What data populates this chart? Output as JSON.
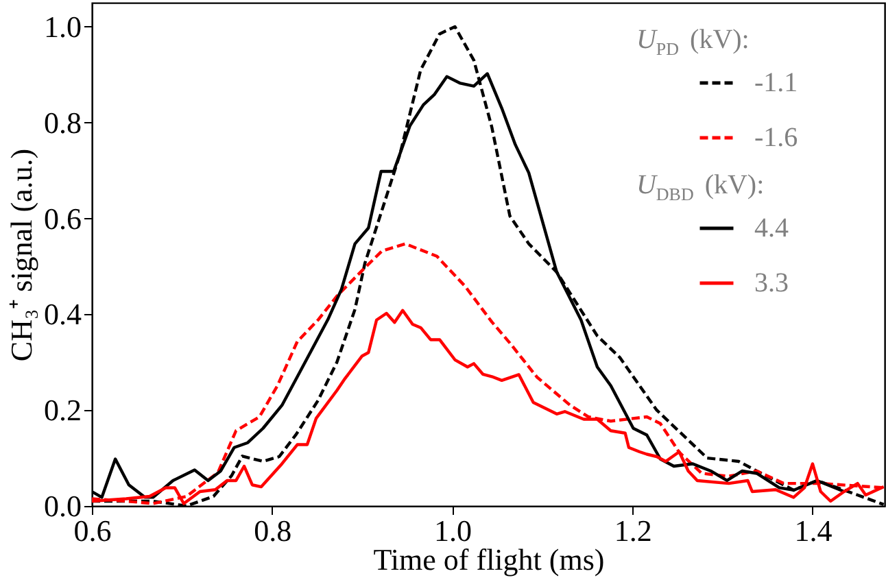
{
  "chart_data": {
    "type": "line",
    "xlabel": "Time of flight (ms)",
    "ylabel": "CH₃⁺ signal (a.u.)",
    "legend_title": "U$_{PD}$ (kV):",
    "annotations": [
      "U$_{DBD}$ (kV):"
    ],
    "xlim": [
      0.6,
      1.48
    ],
    "ylim": [
      0.0,
      1.05
    ],
    "xticks": [
      0.6,
      0.8,
      {
        "value": 1,
        "label": "1.0"
      },
      1.2,
      1.4
    ],
    "yticks": [
      {
        "value": 0,
        "label": "0.0"
      },
      0.2,
      0.4,
      0.6,
      0.8,
      {
        "value": 1,
        "label": "1.0"
      }
    ],
    "grid": false,
    "legend": "top right",
    "marker": "none",
    "series": [
      {
        "name": "-1.1",
        "color": "#000000",
        "line_style": "dashed",
        "x": [
          0.6,
          0.668,
          0.705,
          0.735,
          0.755,
          0.767,
          0.79,
          0.808,
          0.827,
          0.851,
          0.872,
          0.892,
          0.903,
          0.942,
          0.965,
          0.986,
          1.003,
          1.024,
          1.044,
          1.064,
          1.085,
          1.116,
          1.161,
          1.186,
          1.227,
          1.283,
          1.318,
          1.338,
          1.379,
          1.405,
          1.435,
          1.479
        ],
        "values": [
          0.01,
          0.01,
          0.0,
          0.02,
          0.063,
          0.104,
          0.093,
          0.103,
          0.15,
          0.22,
          0.3,
          0.41,
          0.506,
          0.734,
          0.91,
          0.985,
          1.0,
          0.93,
          0.79,
          0.605,
          0.547,
          0.488,
          0.355,
          0.31,
          0.2,
          0.1,
          0.093,
          0.073,
          0.033,
          0.053,
          0.033,
          0.003
        ]
      },
      {
        "name": "-1.6",
        "color": "#ff0000",
        "line_style": "dashed",
        "x": [
          0.6,
          0.638,
          0.668,
          0.705,
          0.74,
          0.76,
          0.786,
          0.806,
          0.828,
          0.851,
          0.872,
          0.903,
          0.922,
          0.948,
          0.983,
          1.014,
          1.044,
          1.064,
          1.094,
          1.131,
          1.151,
          1.176,
          1.216,
          1.231,
          1.252,
          1.277,
          1.307,
          1.338,
          1.368,
          1.409,
          1.479
        ],
        "values": [
          0.015,
          0.01,
          0.005,
          0.02,
          0.07,
          0.157,
          0.186,
          0.251,
          0.343,
          0.388,
          0.438,
          0.497,
          0.532,
          0.547,
          0.521,
          0.459,
          0.384,
          0.34,
          0.269,
          0.21,
          0.186,
          0.177,
          0.186,
          0.172,
          0.112,
          0.068,
          0.062,
          0.073,
          0.047,
          0.047,
          0.038
        ]
      },
      {
        "name": "4.4",
        "color": "#000000",
        "line_style": "solid",
        "x": [
          0.6,
          0.611,
          0.626,
          0.641,
          0.659,
          0.668,
          0.69,
          0.714,
          0.729,
          0.743,
          0.758,
          0.773,
          0.79,
          0.811,
          0.831,
          0.862,
          0.877,
          0.892,
          0.907,
          0.921,
          0.935,
          0.953,
          0.968,
          0.98,
          0.994,
          1.009,
          1.024,
          1.039,
          1.055,
          1.07,
          1.085,
          1.116,
          1.143,
          1.161,
          1.176,
          1.201,
          1.216,
          1.231,
          1.246,
          1.267,
          1.287,
          1.305,
          1.322,
          1.338,
          1.363,
          1.379,
          1.405,
          1.435
        ],
        "values": [
          0.03,
          0.018,
          0.098,
          0.044,
          0.018,
          0.018,
          0.053,
          0.075,
          0.053,
          0.073,
          0.122,
          0.132,
          0.162,
          0.21,
          0.28,
          0.389,
          0.452,
          0.547,
          0.58,
          0.698,
          0.698,
          0.793,
          0.837,
          0.858,
          0.896,
          0.882,
          0.876,
          0.902,
          0.83,
          0.754,
          0.695,
          0.488,
          0.388,
          0.29,
          0.251,
          0.162,
          0.148,
          0.098,
          0.083,
          0.088,
          0.073,
          0.053,
          0.073,
          0.068,
          0.038,
          0.033,
          0.053,
          0.03
        ]
      },
      {
        "name": "3.3",
        "color": "#ff0000",
        "line_style": "solid",
        "x": [
          0.6,
          0.638,
          0.664,
          0.682,
          0.692,
          0.702,
          0.72,
          0.737,
          0.75,
          0.76,
          0.769,
          0.778,
          0.788,
          0.811,
          0.828,
          0.839,
          0.849,
          0.872,
          0.881,
          0.9,
          0.907,
          0.916,
          0.927,
          0.936,
          0.945,
          0.956,
          0.965,
          0.976,
          0.986,
          1.003,
          1.017,
          1.024,
          1.034,
          1.044,
          1.055,
          1.074,
          1.09,
          1.116,
          1.125,
          1.146,
          1.161,
          1.176,
          1.192,
          1.196,
          1.208,
          1.216,
          1.227,
          1.237,
          1.252,
          1.262,
          1.272,
          1.307,
          1.328,
          1.333,
          1.359,
          1.379,
          1.391,
          1.4,
          1.409,
          1.42,
          1.435,
          1.45,
          1.459,
          1.479
        ],
        "values": [
          0.01,
          0.015,
          0.02,
          0.038,
          0.038,
          0.005,
          0.03,
          0.034,
          0.053,
          0.053,
          0.083,
          0.044,
          0.04,
          0.088,
          0.128,
          0.128,
          0.183,
          0.241,
          0.266,
          0.313,
          0.32,
          0.388,
          0.402,
          0.383,
          0.408,
          0.379,
          0.372,
          0.347,
          0.347,
          0.305,
          0.29,
          0.297,
          0.275,
          0.27,
          0.262,
          0.274,
          0.216,
          0.192,
          0.197,
          0.181,
          0.181,
          0.157,
          0.152,
          0.122,
          0.113,
          0.108,
          0.103,
          0.093,
          0.113,
          0.073,
          0.053,
          0.047,
          0.053,
          0.03,
          0.034,
          0.018,
          0.038,
          0.088,
          0.03,
          0.01,
          0.03,
          0.047,
          0.023,
          0.04
        ]
      }
    ]
  }
}
